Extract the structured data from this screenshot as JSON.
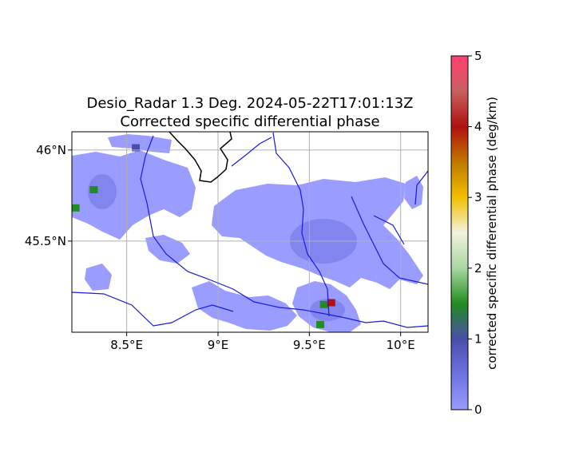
{
  "chart_data": {
    "type": "heatmap",
    "title": "Desio_Radar 1.3 Deg. 2024-05-22T17:01:13Z",
    "subtitle": "Corrected specific differential phase",
    "x_ticks": [
      "8.5°E",
      "9°E",
      "9.5°E",
      "10°E"
    ],
    "x_tick_values": [
      8.5,
      9.0,
      9.5,
      10.0
    ],
    "y_ticks": [
      "46°N",
      "45.5°N"
    ],
    "y_tick_values": [
      46.0,
      45.5
    ],
    "xlim": [
      8.2,
      10.15
    ],
    "ylim": [
      45.0,
      46.1
    ],
    "grid": true,
    "colorbar": {
      "label": "corrected specific differential phase (deg/km)",
      "ticks": [
        "0",
        "1",
        "2",
        "3",
        "4",
        "5"
      ],
      "tick_values": [
        0,
        1,
        2,
        3,
        4,
        5
      ],
      "range": [
        0,
        5
      ],
      "colors": [
        "#9a9cff",
        "#6e72e0",
        "#4a4ea8",
        "#218c21",
        "#a8d8a0",
        "#f2f2e0",
        "#f0c000",
        "#c07800",
        "#b01010",
        "#c86060",
        "#ff4070"
      ]
    },
    "echo_color": "#9a9cff",
    "hotspots": [
      {
        "lon": 9.58,
        "lat": 45.15,
        "value": 1.5
      },
      {
        "lon": 9.62,
        "lat": 45.16,
        "value": 4.0
      },
      {
        "lon": 9.56,
        "lat": 45.04,
        "value": 1.3
      },
      {
        "lon": 8.32,
        "lat": 45.78,
        "value": 1.6
      },
      {
        "lon": 8.22,
        "lat": 45.68,
        "value": 1.4
      },
      {
        "lon": 8.55,
        "lat": 46.01,
        "value": 1.2
      }
    ]
  }
}
